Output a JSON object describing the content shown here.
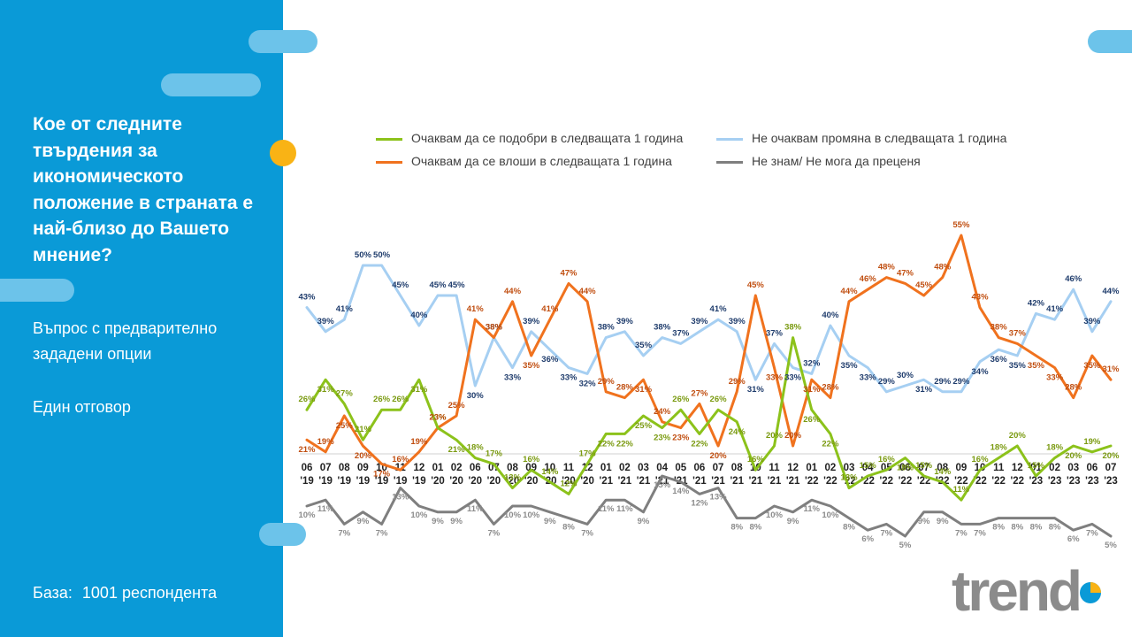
{
  "sidebar": {
    "question": "Кое от следните твърдения за икономическото положение в страната е най-близо до Вашето мнение?",
    "subtitle": "Въпрос с предварително зададени опции",
    "answer_type": "Един отговор",
    "base_label": "База:",
    "base_value": "1001 респондента"
  },
  "brand": {
    "name": "trend",
    "accent": "#0a9ad7",
    "secondary": "#f9b315",
    "logo_color": "#8b8b8b"
  },
  "chart_data": {
    "type": "line",
    "title": "",
    "xlabel": "",
    "ylabel": "",
    "ylim": [
      0,
      60
    ],
    "categories": [
      "06 '19",
      "07 '19",
      "08 '19",
      "09 '19",
      "10 '19",
      "11 '19",
      "12 '19",
      "01 '20",
      "02 '20",
      "06 '20",
      "07 '20",
      "08 '20",
      "09 '20",
      "10 '20",
      "11 '20",
      "12 '20",
      "01 '21",
      "02 '21",
      "03 '21",
      "04 '21",
      "05 '21",
      "06 '21",
      "07 '21",
      "08 '21",
      "10 '21",
      "11 '21",
      "12 '21",
      "01 '22",
      "02 '22",
      "03 '22",
      "04 '22",
      "05 '22",
      "06 '22",
      "07 '22",
      "08 '22",
      "09 '22",
      "10 '22",
      "11 '22",
      "12 '22",
      "01 '23",
      "02 '23",
      "03 '23",
      "06 '23",
      "07 '23"
    ],
    "series": [
      {
        "name": "Очаквам да се подобри в следващата 1 година",
        "color": "#8cc21b",
        "label_color": "#7a9a10",
        "values": [
          26,
          31,
          27,
          21,
          26,
          26,
          31,
          23,
          21,
          18,
          17,
          13,
          16,
          14,
          12,
          17,
          22,
          22,
          25,
          23,
          26,
          22,
          26,
          24,
          16,
          20,
          38,
          26,
          22,
          13,
          15,
          16,
          18,
          15,
          14,
          11,
          16,
          18,
          20,
          15,
          18,
          20,
          19,
          20
        ]
      },
      {
        "name": "Не очаквам промяна в следващата 1 година",
        "color": "#a6cff2",
        "label_color": "#1f3c6c",
        "values": [
          43,
          39,
          41,
          50,
          50,
          45,
          40,
          45,
          45,
          30,
          38,
          33,
          39,
          36,
          33,
          32,
          38,
          39,
          35,
          38,
          37,
          39,
          41,
          39,
          31,
          37,
          33,
          32,
          40,
          35,
          33,
          29,
          30,
          31,
          29,
          29,
          34,
          36,
          35,
          42,
          41,
          46,
          39,
          44
        ]
      },
      {
        "name": "Очаквам да се влоши в следващата 1 година",
        "color": "#f0721e",
        "label_color": "#c04e10",
        "values": [
          21,
          19,
          25,
          20,
          17,
          16,
          19,
          23,
          25,
          41,
          38,
          44,
          35,
          41,
          47,
          44,
          29,
          28,
          31,
          24,
          23,
          27,
          20,
          29,
          45,
          33,
          20,
          31,
          28,
          44,
          46,
          48,
          47,
          45,
          48,
          55,
          43,
          38,
          37,
          35,
          33,
          28,
          35,
          31
        ]
      },
      {
        "name": "Не знам/ Не мога да преценя",
        "color": "#7f7f7f",
        "label_color": "#8c8c8c",
        "values": [
          10,
          11,
          7,
          9,
          7,
          13,
          10,
          9,
          9,
          11,
          7,
          10,
          10,
          9,
          8,
          7,
          11,
          11,
          9,
          15,
          14,
          12,
          13,
          8,
          8,
          10,
          9,
          11,
          10,
          8,
          6,
          7,
          5,
          9,
          9,
          7,
          7,
          8,
          8,
          8,
          8,
          6,
          7,
          5
        ]
      }
    ],
    "legend_position": "top"
  }
}
